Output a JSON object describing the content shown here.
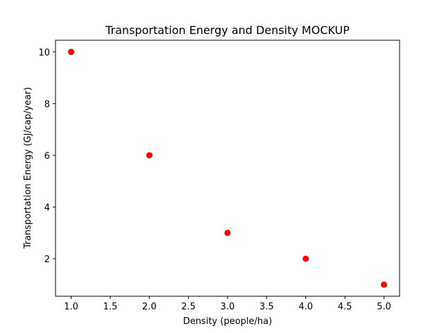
{
  "chart_data": {
    "type": "scatter",
    "title": "Transportation Energy and Density MOCKUP",
    "xlabel": "Density (people/ha)",
    "ylabel": "Transportation Energy (GJ/cap/year)",
    "xlim": [
      0.8,
      5.2
    ],
    "ylim": [
      0.55,
      10.45
    ],
    "xticks": [
      1.0,
      1.5,
      2.0,
      2.5,
      3.0,
      3.5,
      4.0,
      4.5,
      5.0
    ],
    "xtick_labels": [
      "1.0",
      "1.5",
      "2.0",
      "2.5",
      "3.0",
      "3.5",
      "4.0",
      "4.5",
      "5.0"
    ],
    "yticks": [
      2,
      4,
      6,
      8,
      10
    ],
    "ytick_labels": [
      "2",
      "4",
      "6",
      "8",
      "10"
    ],
    "grid": false,
    "marker_color": "#ff0000",
    "series": [
      {
        "x": [
          1,
          2,
          3,
          4,
          5
        ],
        "y": [
          10,
          6,
          3,
          2,
          1
        ]
      }
    ]
  }
}
